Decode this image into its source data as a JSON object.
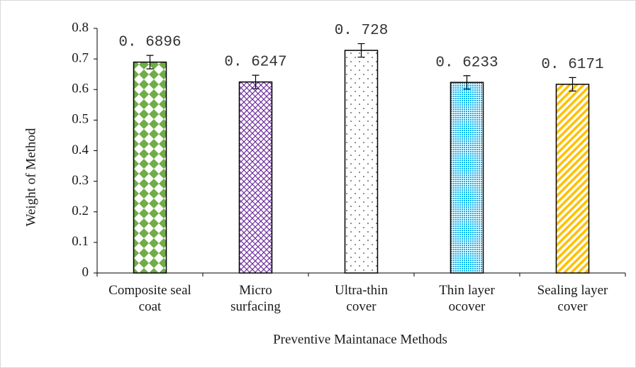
{
  "chart_data": {
    "type": "bar",
    "x_label": "Preventive Maintanace Methods",
    "y_label": "Weight of Method",
    "categories": [
      "Composite seal\ncoat",
      "Micro\nsurfacing",
      "Ultra-thin\ncover",
      "Thin layer\nocover",
      "Sealing layer\ncover"
    ],
    "values": [
      0.6896,
      0.6247,
      0.728,
      0.6233,
      0.6171
    ],
    "value_labels": [
      "0. 6896",
      "0. 6247",
      "0. 728",
      "0. 6233",
      "0. 6171"
    ],
    "errors": [
      0.022,
      0.022,
      0.022,
      0.022,
      0.022
    ],
    "colors": [
      "#70ad47",
      "#7030a0",
      "#404040",
      "#00b0f0",
      "#ffc000"
    ],
    "ylim": [
      0,
      0.8
    ],
    "yticks": [
      0,
      0.1,
      0.2,
      0.3,
      0.4,
      0.5,
      0.6,
      0.7,
      0.8
    ]
  }
}
